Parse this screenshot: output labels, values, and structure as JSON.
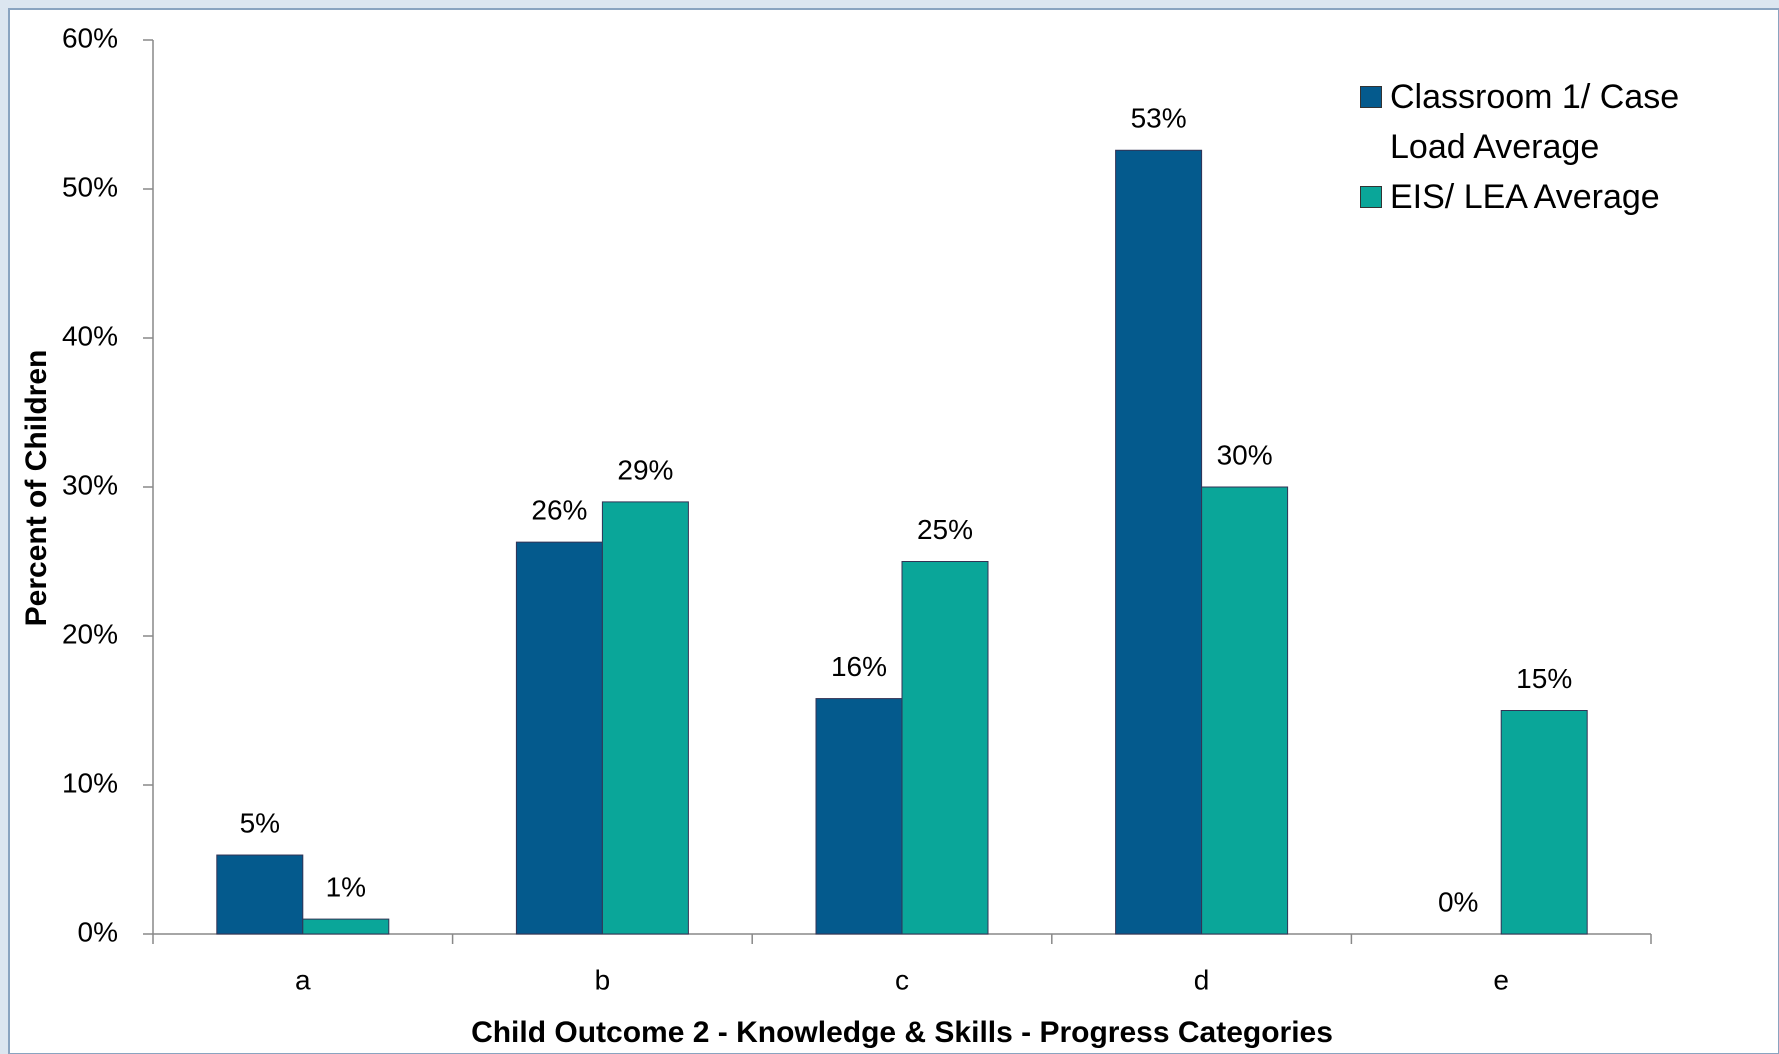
{
  "chart_data": {
    "type": "bar",
    "xlabel": "Child Outcome 2 - Knowledge & Skills - Progress Categories",
    "ylabel": "Percent of Children",
    "categories": [
      "a",
      "b",
      "c",
      "d",
      "e"
    ],
    "series": [
      {
        "name": "Classroom 1/ Case Load Average",
        "color": "#045a8d",
        "values": [
          5.3,
          26.3,
          15.8,
          52.6,
          0
        ],
        "value_labels": [
          "5%",
          "26%",
          "16%",
          "53%",
          "0%"
        ]
      },
      {
        "name": "EIS/ LEA Average",
        "color": "#0aa699",
        "values": [
          1,
          29,
          25,
          30,
          15
        ],
        "value_labels": [
          "1%",
          "29%",
          "25%",
          "30%",
          "15%"
        ]
      }
    ],
    "ylim": [
      0,
      60
    ],
    "yticks": [
      {
        "value": 0,
        "label": "0%"
      },
      {
        "value": 10,
        "label": "10%"
      },
      {
        "value": 20,
        "label": "20%"
      },
      {
        "value": 30,
        "label": "30%"
      },
      {
        "value": 40,
        "label": "40%"
      },
      {
        "value": 50,
        "label": "50%"
      },
      {
        "value": 60,
        "label": "60%"
      }
    ],
    "legend": "top-right"
  }
}
